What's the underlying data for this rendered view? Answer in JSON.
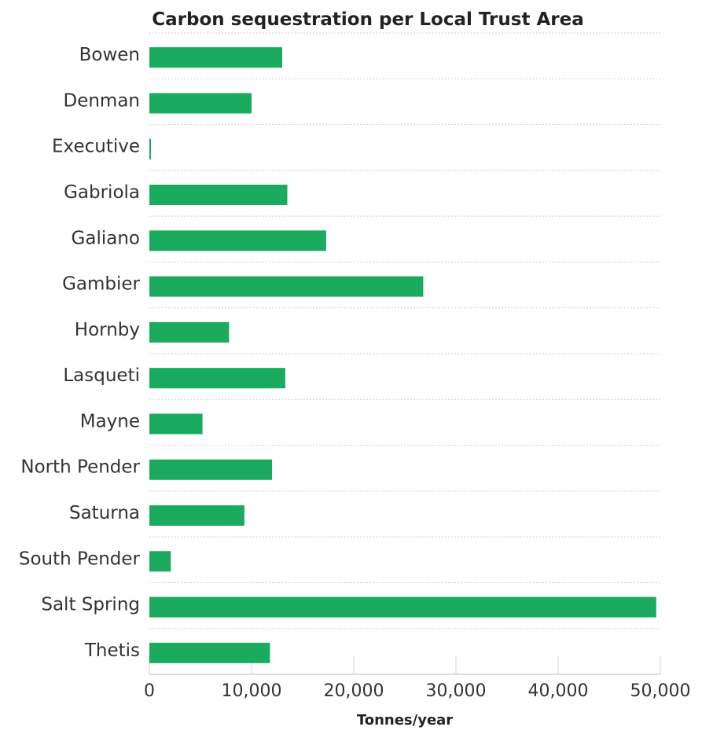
{
  "chart_data": {
    "type": "bar",
    "orientation": "horizontal",
    "title": "Carbon sequestration per Local Trust Area",
    "xlabel": "Tonnes/year",
    "ylabel": "",
    "categories": [
      "Bowen",
      "Denman",
      "Executive",
      "Gabriola",
      "Galiano",
      "Gambier",
      "Hornby",
      "Lasqueti",
      "Mayne",
      "North Pender",
      "Saturna",
      "South Pender",
      "Salt Spring",
      "Thetis"
    ],
    "values": [
      13000,
      10000,
      150,
      13500,
      17300,
      26800,
      7800,
      13300,
      5200,
      12000,
      9300,
      2100,
      49600,
      11800
    ],
    "xlim": [
      0,
      50000
    ],
    "xticks": [
      0,
      10000,
      20000,
      30000,
      40000,
      50000
    ],
    "xtick_labels": [
      "0",
      "10,000",
      "20,000",
      "30,000",
      "40,000",
      "50,000"
    ],
    "bar_color": "#1aab5f",
    "grid": true
  }
}
